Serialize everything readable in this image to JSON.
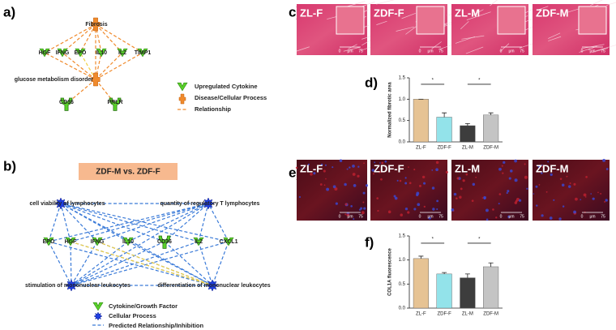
{
  "panels": {
    "a": "a)",
    "b": "b)",
    "c": "c)",
    "d": "d)",
    "e": "e)",
    "f": "f)"
  },
  "diagram_a": {
    "nodes": [
      {
        "label": "Fibrosis"
      },
      {
        "label": "glucose metabolism disorder"
      },
      {
        "label": "HGF"
      },
      {
        "label": "IFNG"
      },
      {
        "label": "EPO"
      },
      {
        "label": "IL10"
      },
      {
        "label": "IL2"
      },
      {
        "label": "TIMP1"
      },
      {
        "label": "CD36"
      },
      {
        "label": "PRLR"
      }
    ],
    "legend": [
      "Upregulated Cytokine",
      "Disease/Cellular Process",
      "Relationship"
    ]
  },
  "diagram_b": {
    "title": "ZDF-M vs. ZDF-F",
    "nodes": [
      {
        "label": "cell viability of lymphocytes"
      },
      {
        "label": "quantity of regulatory T lymphocytes"
      },
      {
        "label": "stimulation of mononuclear leukocytes"
      },
      {
        "label": "differentiation of mononuclear leukocytes"
      },
      {
        "label": "EPO"
      },
      {
        "label": "HGF"
      },
      {
        "label": "IFNG"
      },
      {
        "label": "IL10"
      },
      {
        "label": "CD36"
      },
      {
        "label": "IL2"
      },
      {
        "label": "CXCL1"
      }
    ],
    "legend": [
      "Cytokine/Growth Factor",
      "Cellular Process",
      "Predicted Relationship/Inhibition"
    ]
  },
  "images_c": {
    "labels": [
      "ZL-F",
      "ZDF-F",
      "ZL-M",
      "ZDF-M"
    ],
    "scale": [
      "0",
      "μm",
      "75"
    ]
  },
  "images_e": {
    "labels": [
      "ZL-F",
      "ZDF-F",
      "ZL-M",
      "ZDF-M"
    ],
    "scale": [
      "0",
      "μm",
      "75"
    ]
  },
  "chart_data": [
    {
      "type": "bar",
      "y_label": "Normalized fibrotic area",
      "categories": [
        "ZL-F",
        "ZDF-F",
        "ZL-M",
        "ZDF-M"
      ],
      "values": [
        1.0,
        0.58,
        0.38,
        0.63
      ],
      "errors": [
        0,
        0.1,
        0.05,
        0.05
      ],
      "colors": [
        "#e6c394",
        "#93e3ea",
        "#3d3d3d",
        "#c4c4c4"
      ],
      "ylim": [
        0,
        1.5
      ],
      "yticks": [
        {
          "value": 0,
          "label": "0.0"
        },
        {
          "value": 0.5,
          "label": "0.5"
        },
        {
          "value": 1,
          "label": "1.0"
        },
        {
          "value": 1.5,
          "label": "1.5"
        }
      ],
      "annotations": [
        "*",
        "*"
      ]
    },
    {
      "type": "bar",
      "y_label": "COL1A fluorescence",
      "categories": [
        "ZL-F",
        "ZDF-F",
        "ZL-M",
        "ZDF-M"
      ],
      "values": [
        1.03,
        0.71,
        0.63,
        0.86
      ],
      "errors": [
        0.05,
        0.03,
        0.08,
        0.08
      ],
      "colors": [
        "#e6c394",
        "#93e3ea",
        "#3d3d3d",
        "#c4c4c4"
      ],
      "ylim": [
        0,
        1.5
      ],
      "yticks": [
        {
          "value": 0,
          "label": "0.0"
        },
        {
          "value": 0.5,
          "label": "0.5"
        },
        {
          "value": 1,
          "label": "1.0"
        },
        {
          "value": 1.5,
          "label": "1.5"
        }
      ],
      "annotations": [
        "*",
        "*"
      ]
    }
  ]
}
